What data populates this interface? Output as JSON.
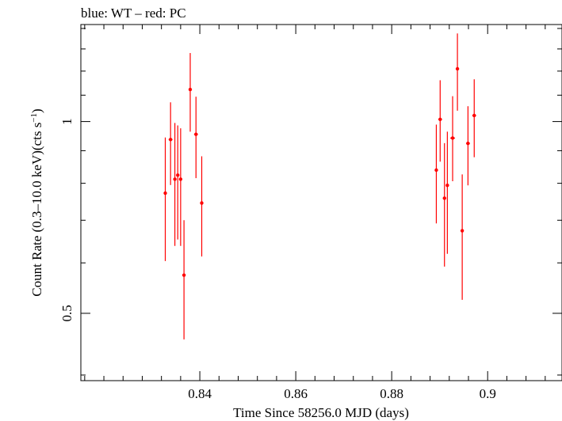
{
  "chart_data": {
    "type": "scatter",
    "title": "blue: WT – red: PC",
    "xlabel": "Time Since 58256.0 MJD (days)",
    "ylabel_main": "Count Rate (0.3–10.0 keV)(cts s",
    "ylabel_sup": "−1",
    "ylabel_close": ")",
    "y_scale": "log",
    "xlim": [
      0.8152,
      0.9155
    ],
    "ylim": [
      0.392,
      1.42
    ],
    "x_ticks": [
      0.84,
      0.86,
      0.88,
      0.9
    ],
    "x_tick_labels": [
      "0.84",
      "0.86",
      "0.88",
      "0.9"
    ],
    "y_ticks": [
      0.5,
      1
    ],
    "y_tick_labels": [
      "0.5",
      "1"
    ],
    "grid": false,
    "series": [
      {
        "color": "#ff0000",
        "points": [
          {
            "x": 0.8328,
            "xerr": 0.0002,
            "y": 0.772,
            "ylo": 0.604,
            "yhi": 0.944
          },
          {
            "x": 0.8339,
            "xerr": 0.0004,
            "y": 0.937,
            "ylo": 0.795,
            "yhi": 1.072
          },
          {
            "x": 0.8348,
            "xerr": 0.0003,
            "y": 0.812,
            "ylo": 0.638,
            "yhi": 0.995
          },
          {
            "x": 0.8354,
            "xerr": 0.0003,
            "y": 0.824,
            "ylo": 0.653,
            "yhi": 0.986
          },
          {
            "x": 0.836,
            "xerr": 0.0003,
            "y": 0.812,
            "ylo": 0.638,
            "yhi": 0.976
          },
          {
            "x": 0.8367,
            "xerr": 0.0003,
            "y": 0.574,
            "ylo": 0.455,
            "yhi": 0.7
          },
          {
            "x": 0.838,
            "xerr": 0.0003,
            "y": 1.123,
            "ylo": 0.964,
            "yhi": 1.281
          },
          {
            "x": 0.8392,
            "xerr": 0.0004,
            "y": 0.955,
            "ylo": 0.815,
            "yhi": 1.094
          },
          {
            "x": 0.8404,
            "xerr": 0.0003,
            "y": 0.745,
            "ylo": 0.614,
            "yhi": 0.882
          },
          {
            "x": 0.8893,
            "xerr": 0.0003,
            "y": 0.839,
            "ylo": 0.692,
            "yhi": 0.989
          },
          {
            "x": 0.8901,
            "xerr": 0.0004,
            "y": 1.008,
            "ylo": 0.865,
            "yhi": 1.161
          },
          {
            "x": 0.891,
            "xerr": 0.0003,
            "y": 0.758,
            "ylo": 0.592,
            "yhi": 0.925
          },
          {
            "x": 0.8916,
            "xerr": 0.0003,
            "y": 0.794,
            "ylo": 0.62,
            "yhi": 0.964
          },
          {
            "x": 0.8927,
            "xerr": 0.0005,
            "y": 0.942,
            "ylo": 0.806,
            "yhi": 1.096
          },
          {
            "x": 0.8937,
            "xerr": 0.0003,
            "y": 1.21,
            "ylo": 1.04,
            "yhi": 1.375
          },
          {
            "x": 0.8947,
            "xerr": 0.0002,
            "y": 0.674,
            "ylo": 0.525,
            "yhi": 0.826
          },
          {
            "x": 0.8959,
            "xerr": 0.0004,
            "y": 0.924,
            "ylo": 0.794,
            "yhi": 1.057
          },
          {
            "x": 0.8972,
            "xerr": 0.0004,
            "y": 1.022,
            "ylo": 0.879,
            "yhi": 1.165
          }
        ]
      }
    ]
  }
}
